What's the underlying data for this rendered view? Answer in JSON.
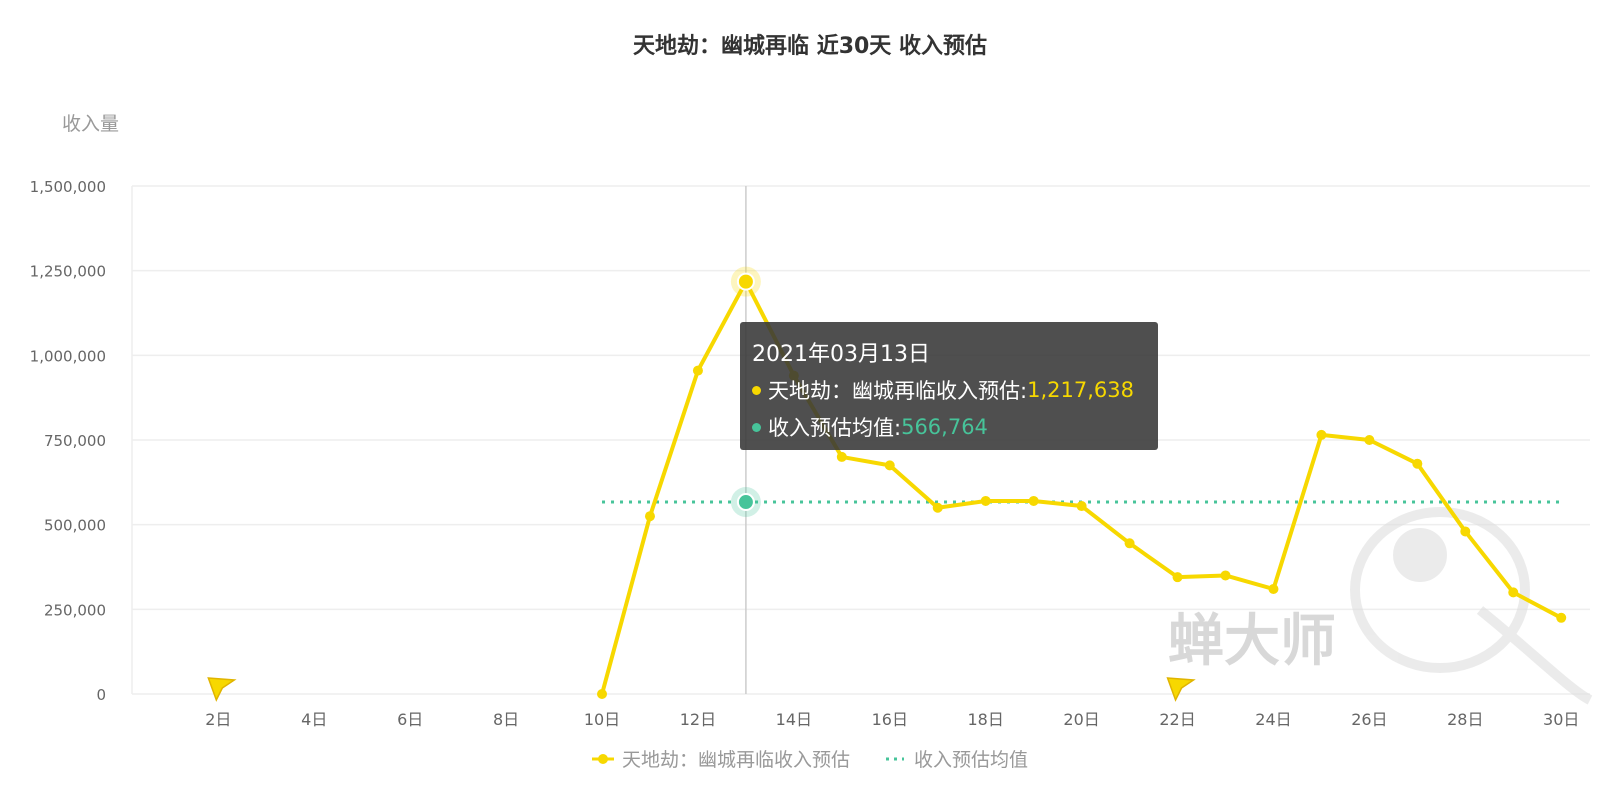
{
  "colors": {
    "series": "#f7d800",
    "average": "#47c49a",
    "grid": "#eeeeee",
    "crosshair": "#cccccc",
    "tooltip_bg": "#3a3a3a"
  },
  "chart_data": {
    "type": "line",
    "title": "天地劫：幽城再临 近30天 收入预估",
    "ylabel": "收入量",
    "xlabel": "",
    "ylim": [
      0,
      1500000
    ],
    "yticks": [
      0,
      250000,
      500000,
      750000,
      1000000,
      1250000,
      1500000
    ],
    "ytick_labels": [
      "0",
      "250,000",
      "500,000",
      "750,000",
      "1,000,000",
      "1,250,000",
      "1,500,000"
    ],
    "xlim": [
      1,
      30
    ],
    "xticks": [
      2,
      4,
      6,
      8,
      10,
      12,
      14,
      16,
      18,
      20,
      22,
      24,
      26,
      28,
      30
    ],
    "xtick_labels": [
      "2日",
      "4日",
      "6日",
      "8日",
      "10日",
      "12日",
      "14日",
      "16日",
      "18日",
      "20日",
      "22日",
      "24日",
      "26日",
      "28日",
      "30日"
    ],
    "grid": true,
    "legend_position": "bottom",
    "series": [
      {
        "name": "天地劫：幽城再临收入预估",
        "style": "solid",
        "x": [
          10,
          11,
          12,
          13,
          14,
          15,
          16,
          17,
          18,
          19,
          20,
          21,
          22,
          23,
          24,
          25,
          26,
          27,
          28,
          29,
          30
        ],
        "values": [
          0,
          525000,
          955000,
          1217638,
          940000,
          700000,
          675000,
          550000,
          570000,
          570000,
          555000,
          445000,
          345000,
          350000,
          310000,
          765000,
          750000,
          680000,
          480000,
          300000,
          225000
        ]
      },
      {
        "name": "收入预估均值",
        "style": "dotted",
        "x": [
          10,
          30
        ],
        "values": [
          566764,
          566764
        ]
      }
    ],
    "markers": [
      {
        "type": "flag",
        "x": 2
      },
      {
        "type": "flag",
        "x": 22
      }
    ],
    "highlight_x": 13
  },
  "tooltip": {
    "date": "2021年03月13日",
    "rows": [
      {
        "label": "天地劫：幽城再临收入预估: ",
        "value": "1,217,638"
      },
      {
        "label": "收入预估均值: ",
        "value": "566,764"
      }
    ]
  },
  "legend": [
    {
      "label": "天地劫：幽城再临收入预估"
    },
    {
      "label": "收入预估均值"
    }
  ],
  "watermark": "蝉大师"
}
